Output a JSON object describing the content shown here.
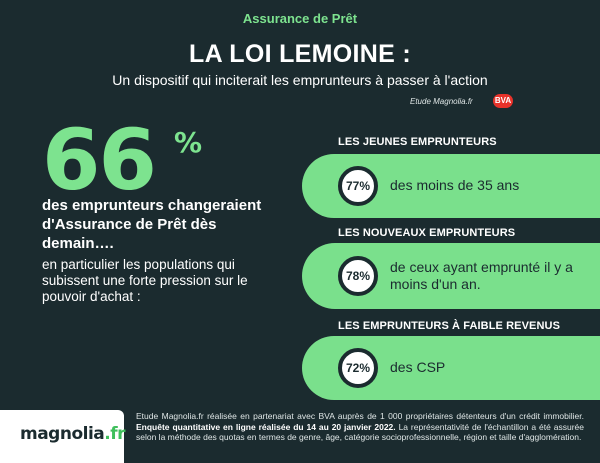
{
  "header": {
    "category": "Assurance de Prêt",
    "title": "LA LOI LEMOINE :",
    "subtitle": "Un dispositif qui inciterait les emprunteurs à passer à l'action",
    "source_note": "Etude Magnolia.fr",
    "partner_logo": "BVA"
  },
  "key_stat": {
    "value": "66",
    "unit": "%",
    "lead": "des emprunteurs changeraient d'Assurance de Prêt dès demain….",
    "detail": "en particulier les populations qui subissent une forte pression sur le pouvoir d'achat :"
  },
  "segments": [
    {
      "header": "LES JEUNES EMPRUNTEURS",
      "percent": "77%",
      "description": "des moins de 35 ans"
    },
    {
      "header": "LES NOUVEAUX  EMPRUNTEURS",
      "percent": "78%",
      "description": "de ceux ayant emprunté il y a moins d'un an."
    },
    {
      "header": "LES EMPRUNTEURS À FAIBLE REVENUS",
      "percent": "72%",
      "description": "des CSP"
    }
  ],
  "footer": {
    "logo_main": "magnolia",
    "logo_tld": ".fr",
    "methodology_part1": "Etude Magnolia.fr réalisée en partenariat avec BVA  auprès de 1 000 propriétaires détenteurs d'un crédit immobilier. ",
    "methodology_bold": "Enquête quantitative en ligne réalisée du 14 au 20 janvier 2022.",
    "methodology_part2": " La représentativité de l'échantillon a été assurée selon la méthode des quotas en termes de genre, âge, catégorie socioprofessionnelle, région et taille d'agglomération."
  },
  "colors": {
    "background": "#1b2b2f",
    "accent_green": "#7de38f",
    "card_green": "#7ae08c",
    "bva_red": "#e8322a"
  }
}
